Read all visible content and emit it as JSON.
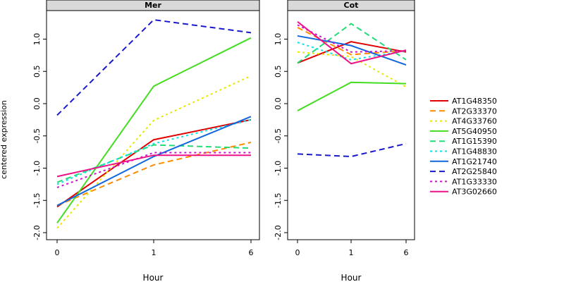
{
  "chart_data": {
    "type": "line",
    "ylabel": "centered expression",
    "xlabel": "Hour",
    "x_tick_labels": [
      "0",
      "1",
      "6"
    ],
    "ylim": [
      -2.0,
      1.3
    ],
    "y_ticks": [
      "-2.0",
      "-1.5",
      "-1.0",
      "-0.5",
      "0.0",
      "0.5",
      "1.0"
    ],
    "panels": [
      {
        "title": "Mer",
        "series": [
          {
            "name": "AT1G48350",
            "values": [
              -1.6,
              -0.56,
              -0.25
            ]
          },
          {
            "name": "AT2G33370",
            "values": [
              -1.58,
              -0.95,
              -0.6
            ]
          },
          {
            "name": "AT4G33760",
            "values": [
              -1.93,
              -0.26,
              0.43
            ]
          },
          {
            "name": "AT5G40950",
            "values": [
              -1.85,
              0.27,
              1.02
            ]
          },
          {
            "name": "AT1G15390",
            "values": [
              -1.22,
              -0.64,
              -0.69
            ]
          },
          {
            "name": "AT1G48830",
            "values": [
              -1.25,
              -0.62,
              -0.25
            ]
          },
          {
            "name": "AT1G21740",
            "values": [
              -1.58,
              -0.82,
              -0.2
            ]
          },
          {
            "name": "AT2G25840",
            "values": [
              -0.18,
              1.3,
              1.1
            ]
          },
          {
            "name": "AT1G33330",
            "values": [
              -1.3,
              -0.76,
              -0.76
            ]
          },
          {
            "name": "AT3G02660",
            "values": [
              -1.13,
              -0.8,
              -0.8
            ]
          }
        ]
      },
      {
        "title": "Cot",
        "series": [
          {
            "name": "AT1G48350",
            "values": [
              0.63,
              0.96,
              0.8
            ]
          },
          {
            "name": "AT2G33370",
            "values": [
              1.18,
              0.76,
              0.82
            ]
          },
          {
            "name": "AT4G33760",
            "values": [
              0.8,
              0.73,
              0.26
            ]
          },
          {
            "name": "AT5G40950",
            "values": [
              -0.11,
              0.33,
              0.31
            ]
          },
          {
            "name": "AT1G15390",
            "values": [
              0.63,
              1.24,
              0.68
            ]
          },
          {
            "name": "AT1G48830",
            "values": [
              0.95,
              0.68,
              0.82
            ]
          },
          {
            "name": "AT1G21740",
            "values": [
              1.05,
              0.9,
              0.6
            ]
          },
          {
            "name": "AT2G25840",
            "values": [
              -0.78,
              -0.82,
              -0.62
            ]
          },
          {
            "name": "AT1G33330",
            "values": [
              1.22,
              0.8,
              0.82
            ]
          },
          {
            "name": "AT3G02660",
            "values": [
              1.27,
              0.62,
              0.83
            ]
          }
        ]
      }
    ],
    "legend": {
      "placement": "right",
      "entries": [
        {
          "name": "AT1G48350",
          "color": "#e00000",
          "dash": "solid"
        },
        {
          "name": "AT2G33370",
          "color": "#ff8c00",
          "dash": "dashed"
        },
        {
          "name": "AT4G33760",
          "color": "#e8e800",
          "dash": "dotted"
        },
        {
          "name": "AT5G40950",
          "color": "#44dd22",
          "dash": "solid"
        },
        {
          "name": "AT1G15390",
          "color": "#22dd77",
          "dash": "dashed"
        },
        {
          "name": "AT1G48830",
          "color": "#11e0e8",
          "dash": "dotted"
        },
        {
          "name": "AT1G21740",
          "color": "#1166dd",
          "dash": "solid"
        },
        {
          "name": "AT2G25840",
          "color": "#1a1acc",
          "dash": "dashed"
        },
        {
          "name": "AT1G33330",
          "color": "#cc11cc",
          "dash": "dotted"
        },
        {
          "name": "AT3G02660",
          "color": "#ee1188",
          "dash": "solid"
        }
      ]
    },
    "grid": false
  }
}
